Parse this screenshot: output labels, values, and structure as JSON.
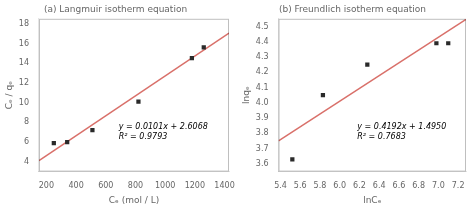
{
  "chart_data": [
    {
      "type": "scatter",
      "title": "(a) Langmuir isotherm equation",
      "x_label": "Cₑ (mol / L)",
      "y_label": "Cₑ / qₑ",
      "xlim": [
        150,
        1430
      ],
      "ylim": [
        3.0,
        18.5
      ],
      "xticks": [
        200,
        400,
        600,
        800,
        1000,
        1200,
        1400
      ],
      "yticks": [
        4,
        6,
        8,
        10,
        12,
        14,
        16,
        18
      ],
      "grid": false,
      "series": [
        {
          "type": "scatter",
          "marker": "square",
          "color": "#2a2a2a",
          "x": [
            250,
            340,
            510,
            820,
            1180,
            1260
          ],
          "values": [
            5.9,
            6.0,
            7.2,
            10.1,
            14.5,
            15.6
          ]
        },
        {
          "type": "line",
          "line_style": "solid",
          "color": "#d9706a",
          "x": [
            150,
            1430
          ],
          "values": [
            4.1218,
            17.0498
          ]
        }
      ],
      "annotations": [
        "y = 0.0101x + 2.6068",
        "R² = 0.9793"
      ]
    },
    {
      "type": "scatter",
      "title": "(b) Freundlich isotherm equation",
      "x_label": "lnCₑ",
      "y_label": "lnqₑ",
      "xlim": [
        5.38,
        7.28
      ],
      "ylim": [
        3.55,
        4.55
      ],
      "xticks": [
        5.4,
        5.6,
        5.8,
        {
          "value": 6,
          "label": "6.0"
        },
        6.2,
        6.4,
        6.6,
        6.8,
        {
          "value": 7,
          "label": "7.0"
        },
        7.2
      ],
      "yticks": [
        3.6,
        3.7,
        3.8,
        3.9,
        {
          "value": 4,
          "label": "4.0"
        },
        4.1,
        4.2,
        4.3,
        4.4,
        4.5
      ],
      "grid": false,
      "series": [
        {
          "type": "scatter",
          "marker": "square",
          "color": "#2a2a2a",
          "x": [
            5.52,
            5.83,
            6.28,
            6.98,
            7.1
          ],
          "values": [
            3.63,
            4.05,
            4.25,
            4.39,
            4.39
          ]
        },
        {
          "type": "line",
          "line_style": "solid",
          "color": "#d9706a",
          "x": [
            5.38,
            7.28
          ],
          "values": [
            3.750296,
            4.546776
          ]
        }
      ],
      "annotations": [
        "y = 0.4192x + 1.4950",
        "R² = 0.7683"
      ]
    }
  ]
}
